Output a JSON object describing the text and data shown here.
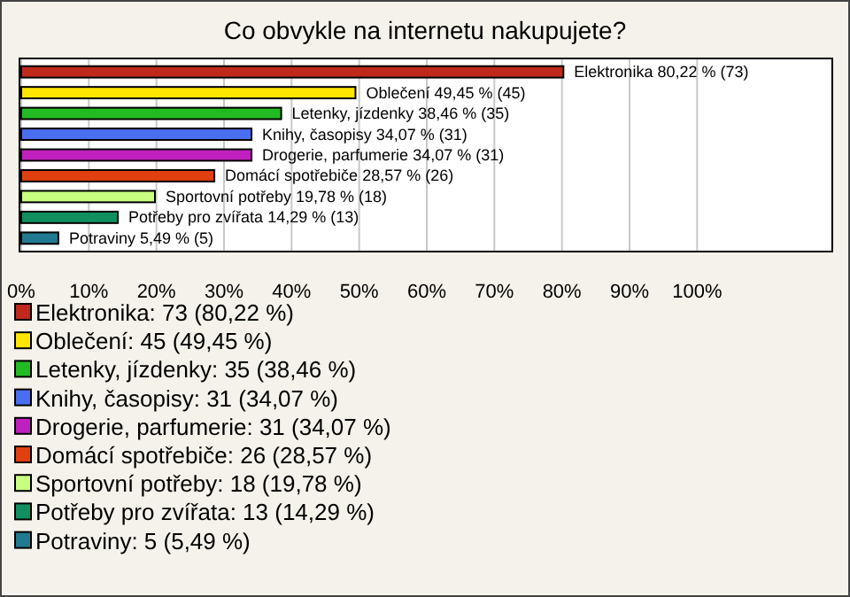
{
  "chart_data": {
    "type": "bar",
    "orientation": "horizontal",
    "title": "Co obvykle na internetu nakupujete?",
    "categories": [
      null,
      null,
      null,
      null,
      null,
      null,
      null,
      null,
      null
    ],
    "values": [
      80.22,
      49.45,
      38.46,
      34.07,
      34.07,
      28.57,
      19.78,
      14.29,
      5.49
    ],
    "colors": [
      "#c0281c",
      "#ffe600",
      "#22bb22",
      "#4a6ef0",
      "#c020c0",
      "#e04010",
      "#c8ff80",
      "#109060",
      "#207a90"
    ],
    "value_labels": [
      "Elektronika 80,22 % (73)",
      "Oblečení 49,45 % (45)",
      "Letenky, jízdenky 38,46 % (35)",
      "Knihy, časopisy 34,07 % (31)",
      "Drogerie, parfumerie 34,07 % (31)",
      "Domácí spotřebiče 28,57 % (26)",
      "Sportovní potřeby 19,78 % (18)",
      "Potřeby pro zvířata 14,29 % (13)",
      "Potraviny 5,49 % (5)"
    ],
    "annotations": [
      "Elektronika: 73 (80,22 %)",
      "Oblečení: 45 (49,45 %)",
      "Letenky, jízdenky: 35 (38,46 %)",
      "Knihy, časopisy: 31 (34,07 %)",
      "Drogerie, parfumerie: 31 (34,07 %)",
      "Domácí spotřebiče: 26 (28,57 %)",
      "Sportovní potřeby: 18 (19,78 %)",
      "Potřeby pro zvířata: 13 (14,29 %)",
      "Potraviny: 5 (5,49 %)"
    ],
    "grid": "x",
    "xlim": [
      0,
      120
    ],
    "xticks": [
      {
        "value": 0,
        "label": "0%"
      },
      {
        "value": 10,
        "label": "10%"
      },
      {
        "value": 20,
        "label": "20%"
      },
      {
        "value": 30,
        "label": "30%"
      },
      {
        "value": 40,
        "label": "40%"
      },
      {
        "value": 50,
        "label": "50%"
      },
      {
        "value": 60,
        "label": "60%"
      },
      {
        "value": 70,
        "label": "70%"
      },
      {
        "value": 80,
        "label": "80%"
      },
      {
        "value": 90,
        "label": "90%"
      },
      {
        "value": 100,
        "label": "100%"
      }
    ]
  }
}
